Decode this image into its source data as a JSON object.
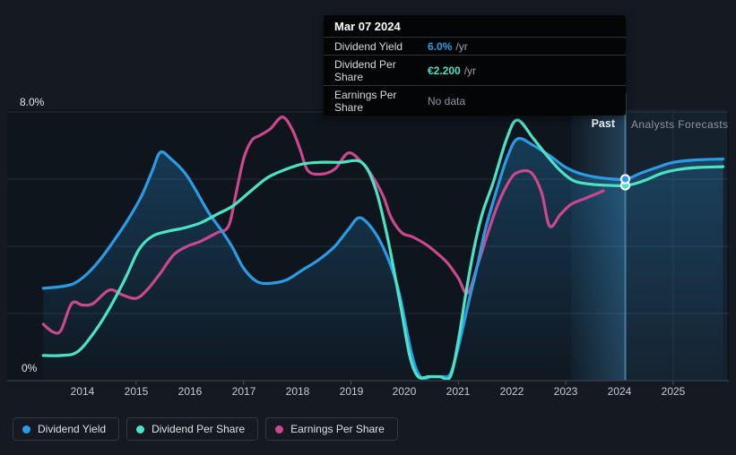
{
  "window": {
    "bg": "#151A22"
  },
  "tooltip": {
    "date": "Mar 07 2024",
    "rows": [
      {
        "label": "Dividend Yield",
        "value": "6.0%",
        "suffix": "/yr",
        "value_color": "#2B9BE5"
      },
      {
        "label": "Dividend Per Share",
        "value": "€2.200",
        "suffix": "/yr",
        "value_color": "#4BE3C3"
      },
      {
        "label": "Earnings Per Share",
        "value": "No data",
        "suffix": "",
        "value_color": "#8F969E"
      }
    ]
  },
  "period_labels": {
    "past": "Past",
    "forecast": "Analysts Forecasts"
  },
  "legend": [
    {
      "label": "Dividend Yield",
      "color": "#2B9BE5"
    },
    {
      "label": "Dividend Per Share",
      "color": "#4BE3C3"
    },
    {
      "label": "Earnings Per Share",
      "color": "#C9498C"
    }
  ],
  "chart_data": {
    "type": "line",
    "y_axis": {
      "top_label": "8.0%",
      "bottom_label": "0%",
      "min": 0,
      "max": 8,
      "gridline_values": [
        8,
        6,
        4,
        2,
        0
      ],
      "grid": true
    },
    "x_axis": {
      "years": [
        "2014",
        "2015",
        "2016",
        "2017",
        "2018",
        "2019",
        "2020",
        "2021",
        "2022",
        "2023",
        "2024",
        "2025"
      ],
      "tick_years": [
        2015,
        2017,
        2019,
        2021,
        2023,
        2025
      ],
      "range": [
        2013.27,
        2025.93
      ]
    },
    "past_until": 2024.13,
    "hover_readout": {
      "date": "Mar 07 2024",
      "dividend_yield_pct": 6.0,
      "dividend_per_share_eur_per_yr": 2.2,
      "earnings_per_share": null
    },
    "markers": [
      {
        "series": "Dividend Yield",
        "x": 2024.13,
        "y": 6.0
      },
      {
        "series": "Dividend Per Share",
        "x": 2024.13,
        "y": 5.81
      }
    ],
    "series": [
      {
        "name": "Dividend Yield",
        "color": "#2B9BE5",
        "unit": "%",
        "area_fill": true,
        "points": [
          [
            2013.27,
            2.75
          ],
          [
            2013.6,
            2.8
          ],
          [
            2013.85,
            2.9
          ],
          [
            2014.1,
            3.2
          ],
          [
            2014.35,
            3.65
          ],
          [
            2014.6,
            4.2
          ],
          [
            2014.85,
            4.8
          ],
          [
            2015.1,
            5.5
          ],
          [
            2015.3,
            6.25
          ],
          [
            2015.45,
            6.8
          ],
          [
            2015.65,
            6.6
          ],
          [
            2015.9,
            6.2
          ],
          [
            2016.1,
            5.7
          ],
          [
            2016.35,
            5.0
          ],
          [
            2016.6,
            4.45
          ],
          [
            2016.8,
            3.95
          ],
          [
            2017.0,
            3.35
          ],
          [
            2017.25,
            2.95
          ],
          [
            2017.5,
            2.9
          ],
          [
            2017.8,
            3.0
          ],
          [
            2018.1,
            3.3
          ],
          [
            2018.4,
            3.6
          ],
          [
            2018.7,
            4.0
          ],
          [
            2018.95,
            4.5
          ],
          [
            2019.17,
            4.85
          ],
          [
            2019.45,
            4.4
          ],
          [
            2019.7,
            3.6
          ],
          [
            2019.9,
            2.6
          ],
          [
            2020.13,
            0.8
          ],
          [
            2020.3,
            0.1
          ],
          [
            2020.5,
            0
          ],
          [
            2020.7,
            0
          ],
          [
            2020.85,
            0.2
          ],
          [
            2021.0,
            1.0
          ],
          [
            2021.2,
            2.4
          ],
          [
            2021.35,
            3.4
          ],
          [
            2021.5,
            4.5
          ],
          [
            2021.7,
            5.6
          ],
          [
            2021.9,
            6.6
          ],
          [
            2022.1,
            7.2
          ],
          [
            2022.4,
            7.0
          ],
          [
            2022.7,
            6.7
          ],
          [
            2023.0,
            6.35
          ],
          [
            2023.3,
            6.15
          ],
          [
            2023.6,
            6.05
          ],
          [
            2023.9,
            6.0
          ],
          [
            2024.13,
            6.0
          ],
          [
            2024.4,
            6.18
          ],
          [
            2024.7,
            6.35
          ],
          [
            2025.0,
            6.5
          ],
          [
            2025.4,
            6.57
          ],
          [
            2025.93,
            6.6
          ]
        ]
      },
      {
        "name": "Dividend Per Share",
        "color": "#4BE3C3",
        "unit": "plotted on yield scale; €2.200/yr at Mar 07 2024",
        "area_fill": false,
        "points": [
          [
            2013.27,
            0.75
          ],
          [
            2013.6,
            0.75
          ],
          [
            2013.9,
            0.85
          ],
          [
            2014.2,
            1.4
          ],
          [
            2014.5,
            2.15
          ],
          [
            2014.8,
            3.05
          ],
          [
            2015.05,
            3.9
          ],
          [
            2015.3,
            4.3
          ],
          [
            2015.6,
            4.45
          ],
          [
            2015.9,
            4.55
          ],
          [
            2016.2,
            4.7
          ],
          [
            2016.5,
            4.95
          ],
          [
            2016.8,
            5.2
          ],
          [
            2017.1,
            5.6
          ],
          [
            2017.45,
            6.05
          ],
          [
            2017.8,
            6.3
          ],
          [
            2018.1,
            6.45
          ],
          [
            2018.4,
            6.5
          ],
          [
            2018.8,
            6.5
          ],
          [
            2019.2,
            6.5
          ],
          [
            2019.45,
            5.75
          ],
          [
            2019.65,
            4.5
          ],
          [
            2019.8,
            3.3
          ],
          [
            2019.95,
            2.0
          ],
          [
            2020.1,
            0.7
          ],
          [
            2020.25,
            0.05
          ],
          [
            2020.45,
            0
          ],
          [
            2020.65,
            0
          ],
          [
            2020.85,
            0.05
          ],
          [
            2021.0,
            1.2
          ],
          [
            2021.15,
            2.7
          ],
          [
            2021.3,
            4.0
          ],
          [
            2021.45,
            5.0
          ],
          [
            2021.65,
            5.9
          ],
          [
            2021.9,
            7.2
          ],
          [
            2022.1,
            7.76
          ],
          [
            2022.4,
            7.2
          ],
          [
            2022.65,
            6.7
          ],
          [
            2022.9,
            6.25
          ],
          [
            2023.15,
            5.95
          ],
          [
            2023.45,
            5.85
          ],
          [
            2023.75,
            5.82
          ],
          [
            2024.13,
            5.81
          ],
          [
            2024.45,
            5.95
          ],
          [
            2024.8,
            6.18
          ],
          [
            2025.15,
            6.3
          ],
          [
            2025.5,
            6.35
          ],
          [
            2025.93,
            6.37
          ]
        ]
      },
      {
        "name": "Earnings Per Share",
        "color": "#C9498C",
        "unit": "plotted on yield scale; No data after 2023.7",
        "area_fill": false,
        "points": [
          [
            2013.27,
            1.68
          ],
          [
            2013.45,
            1.45
          ],
          [
            2013.6,
            1.5
          ],
          [
            2013.8,
            2.3
          ],
          [
            2014.0,
            2.25
          ],
          [
            2014.2,
            2.3
          ],
          [
            2014.5,
            2.7
          ],
          [
            2014.75,
            2.55
          ],
          [
            2015.0,
            2.45
          ],
          [
            2015.2,
            2.7
          ],
          [
            2015.45,
            3.2
          ],
          [
            2015.7,
            3.75
          ],
          [
            2015.95,
            4.0
          ],
          [
            2016.2,
            4.15
          ],
          [
            2016.5,
            4.4
          ],
          [
            2016.72,
            4.6
          ],
          [
            2016.85,
            5.5
          ],
          [
            2017.0,
            6.6
          ],
          [
            2017.15,
            7.15
          ],
          [
            2017.3,
            7.3
          ],
          [
            2017.5,
            7.5
          ],
          [
            2017.72,
            7.85
          ],
          [
            2017.9,
            7.5
          ],
          [
            2018.05,
            6.9
          ],
          [
            2018.2,
            6.25
          ],
          [
            2018.45,
            6.15
          ],
          [
            2018.7,
            6.3
          ],
          [
            2018.95,
            6.78
          ],
          [
            2019.2,
            6.5
          ],
          [
            2019.4,
            6.08
          ],
          [
            2019.6,
            5.5
          ],
          [
            2019.75,
            4.85
          ],
          [
            2019.95,
            4.4
          ],
          [
            2020.15,
            4.28
          ],
          [
            2020.4,
            4.05
          ],
          [
            2020.6,
            3.8
          ],
          [
            2020.8,
            3.5
          ],
          [
            2021.0,
            3.05
          ],
          [
            2021.17,
            2.6
          ],
          [
            2021.35,
            3.4
          ],
          [
            2021.55,
            4.4
          ],
          [
            2021.75,
            5.3
          ],
          [
            2021.95,
            5.95
          ],
          [
            2022.1,
            6.2
          ],
          [
            2022.35,
            6.2
          ],
          [
            2022.55,
            5.6
          ],
          [
            2022.7,
            4.6
          ],
          [
            2022.9,
            4.95
          ],
          [
            2023.1,
            5.25
          ],
          [
            2023.35,
            5.42
          ],
          [
            2023.55,
            5.55
          ],
          [
            2023.7,
            5.65
          ]
        ]
      }
    ]
  }
}
